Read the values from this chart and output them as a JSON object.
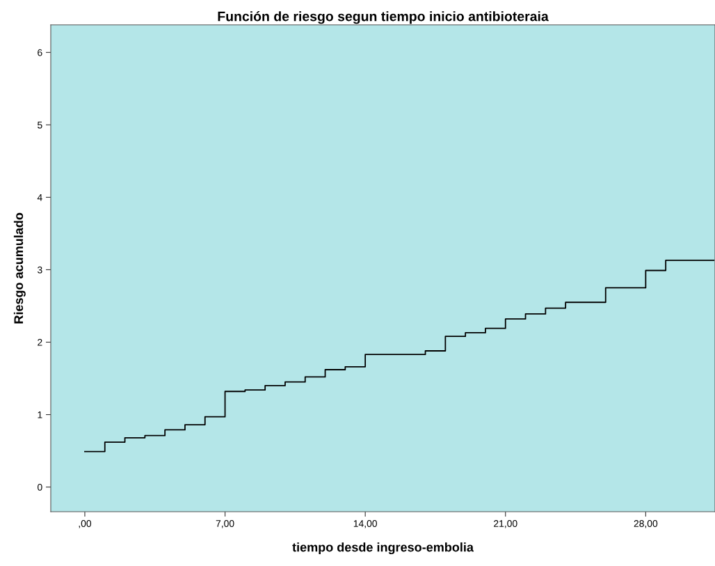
{
  "chart_data": {
    "type": "step",
    "title": "Función de riesgo segun tiempo inicio antibioteraia",
    "xlabel": "tiempo desde ingreso-embolia",
    "ylabel": "Riesgo acumulado",
    "x": [
      0,
      1,
      2,
      3,
      4,
      5,
      6,
      7,
      8,
      9,
      10,
      11,
      12,
      13,
      14,
      17,
      18,
      19,
      20,
      21,
      22,
      23,
      24,
      26,
      28,
      29,
      31.4
    ],
    "series": [
      {
        "color": "#000000",
        "values": [
          0.49,
          0.62,
          0.68,
          0.71,
          0.79,
          0.86,
          0.97,
          1.32,
          1.34,
          1.4,
          1.45,
          1.52,
          1.62,
          1.66,
          1.83,
          1.88,
          2.08,
          2.13,
          2.19,
          2.32,
          2.39,
          2.47,
          2.55,
          2.75,
          2.99,
          3.13,
          3.13
        ]
      }
    ],
    "xlim": [
      -1.7,
      31.46
    ],
    "ylim": [
      -0.34,
      6.38
    ],
    "xticks": [
      {
        "value": 0,
        "label": ",00"
      },
      {
        "value": 7,
        "label": "7,00"
      },
      {
        "value": 14,
        "label": "14,00"
      },
      {
        "value": 21,
        "label": "21,00"
      },
      {
        "value": 28,
        "label": "28,00"
      }
    ],
    "yticks": [
      0,
      1,
      2,
      3,
      4,
      5,
      6
    ],
    "grid": false,
    "legend": false
  }
}
